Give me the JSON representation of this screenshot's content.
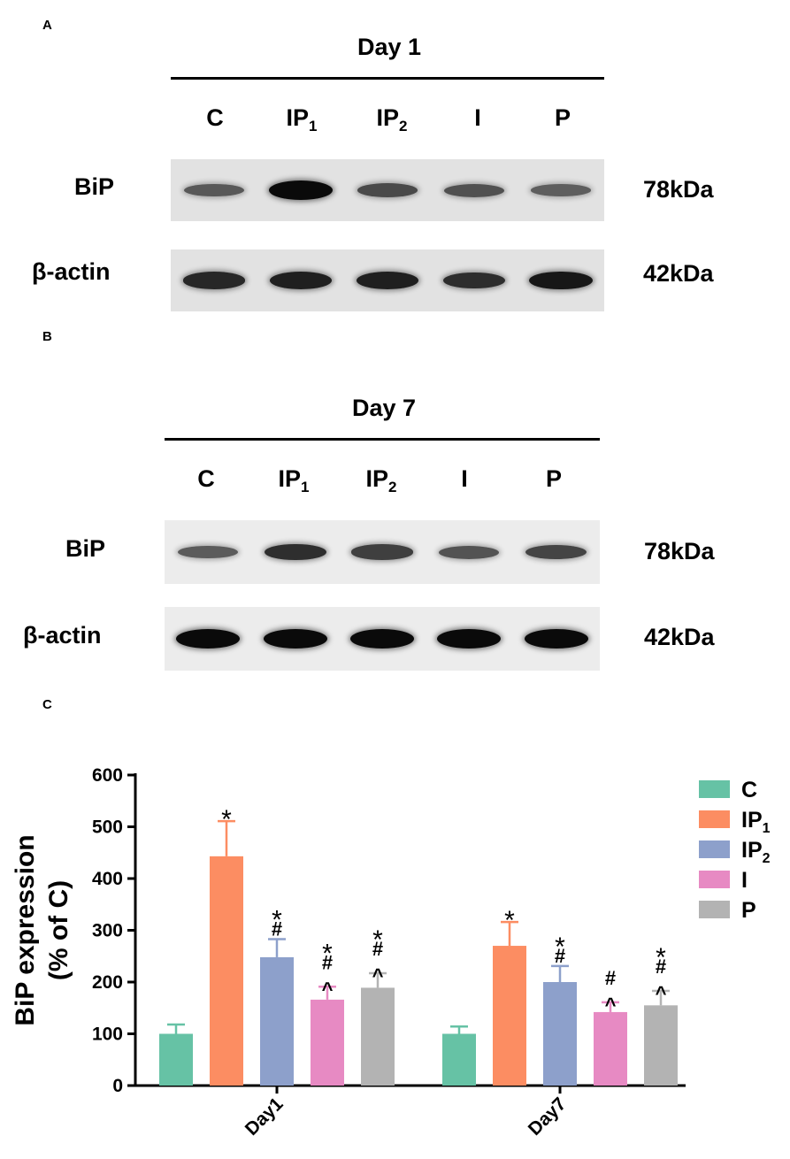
{
  "blots": [
    {
      "panel": "A",
      "title": "Day 1",
      "lanes": [
        {
          "main": "C",
          "sub": ""
        },
        {
          "main": "IP",
          "sub": "1"
        },
        {
          "main": "IP",
          "sub": "2"
        },
        {
          "main": "I",
          "sub": ""
        },
        {
          "main": "P",
          "sub": ""
        }
      ],
      "rows": [
        {
          "label": "BiP",
          "kda": "78kDa",
          "intensity": [
            0.45,
            1.0,
            0.55,
            0.5,
            0.4
          ]
        },
        {
          "label": "β-actin",
          "kda": "42kDa",
          "intensity": [
            0.8,
            0.85,
            0.85,
            0.75,
            0.9
          ]
        }
      ]
    },
    {
      "panel": "B",
      "title": "Day 7",
      "lanes": [
        {
          "main": "C",
          "sub": ""
        },
        {
          "main": "IP",
          "sub": "1"
        },
        {
          "main": "IP",
          "sub": "2"
        },
        {
          "main": "I",
          "sub": ""
        },
        {
          "main": "P",
          "sub": ""
        }
      ],
      "rows": [
        {
          "label": "BiP",
          "kda": "78kDa",
          "intensity": [
            0.45,
            0.75,
            0.65,
            0.5,
            0.6
          ]
        },
        {
          "label": "β-actin",
          "kda": "42kDa",
          "intensity": [
            1.0,
            1.0,
            1.0,
            1.0,
            1.0
          ]
        }
      ]
    }
  ],
  "chart_data": {
    "panel": "C",
    "type": "bar",
    "categories": [
      "Day1",
      "Day7"
    ],
    "ylabel_line1": "BiP expression",
    "ylabel_line2": "(% of C)",
    "ylim": [
      0,
      600
    ],
    "yticks": [
      "0",
      "100",
      "200",
      "300",
      "400",
      "500",
      "600"
    ],
    "series": [
      {
        "name": "C",
        "sub": "",
        "color": "#66c2a5",
        "values": [
          100,
          100
        ],
        "errors": [
          18,
          14
        ],
        "marks": [
          "",
          ""
        ]
      },
      {
        "name": "IP",
        "sub": "1",
        "color": "#fc8d62",
        "values": [
          443,
          270
        ],
        "errors": [
          68,
          46
        ],
        "marks": [
          "*",
          "*"
        ]
      },
      {
        "name": "IP",
        "sub": "2",
        "color": "#8da0cb",
        "values": [
          248,
          200
        ],
        "errors": [
          35,
          31
        ],
        "marks": [
          "*\n#",
          "*\n#"
        ]
      },
      {
        "name": "I",
        "sub": "",
        "color": "#e78ac3",
        "values": [
          166,
          142
        ],
        "errors": [
          25,
          19
        ],
        "marks": [
          "*\n#\n^",
          "#\n^"
        ]
      },
      {
        "name": "P",
        "sub": "",
        "color": "#b3b3b3",
        "values": [
          189,
          155
        ],
        "errors": [
          28,
          28
        ],
        "marks": [
          "*\n#\n^",
          "*\n#\n^"
        ]
      }
    ]
  }
}
